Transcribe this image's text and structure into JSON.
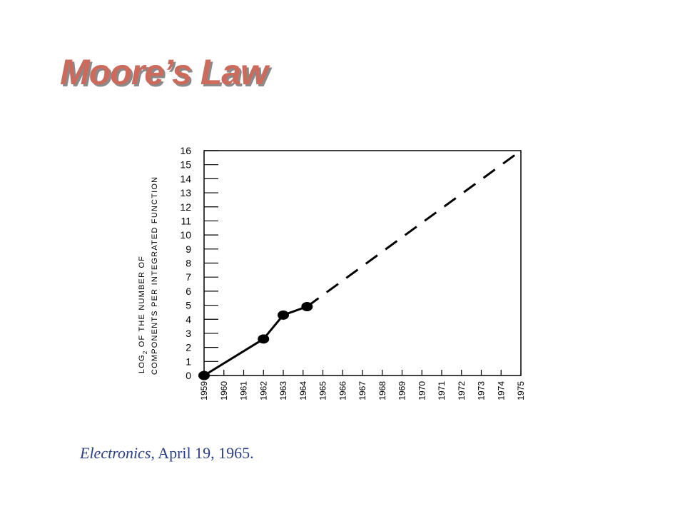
{
  "slide": {
    "title": "Moore’s Law",
    "source_italic": "Electronics",
    "source_rest": ", April 19, 1965."
  },
  "colors": {
    "title": "#cc6a5c",
    "title_shadow": "#8a8a8a",
    "source": "#2a3f86",
    "plot": "#000000"
  },
  "chart_data": {
    "type": "line",
    "title": "",
    "xlabel": "",
    "ylabel_line1_pre": "LOG",
    "ylabel_line1_sub": "2",
    "ylabel_line1_post": " OF THE NUMBER OF",
    "ylabel_line2": "COMPONENTS PER INTEGRATED FUNCTION",
    "x_categories": [
      "1959",
      "1960",
      "1961",
      "1962",
      "1963",
      "1964",
      "1965",
      "1966",
      "1967",
      "1968",
      "1969",
      "1970",
      "1971",
      "1972",
      "1973",
      "1974",
      "1975"
    ],
    "y_ticks": [
      "0",
      "1",
      "2",
      "3",
      "4",
      "5",
      "6",
      "7",
      "8",
      "9",
      "10",
      "11",
      "12",
      "13",
      "14",
      "15",
      "16"
    ],
    "xlim": [
      1959,
      1975
    ],
    "ylim": [
      0,
      16
    ],
    "grid": false,
    "series": [
      {
        "style": "solid",
        "markers": true,
        "points": [
          [
            1959,
            0
          ],
          [
            1962,
            2.6
          ],
          [
            1963,
            4.3
          ],
          [
            1964.2,
            4.9
          ]
        ]
      },
      {
        "style": "dashed",
        "markers": false,
        "points": [
          [
            1964.2,
            4.9
          ],
          [
            1975,
            16
          ]
        ]
      }
    ]
  }
}
